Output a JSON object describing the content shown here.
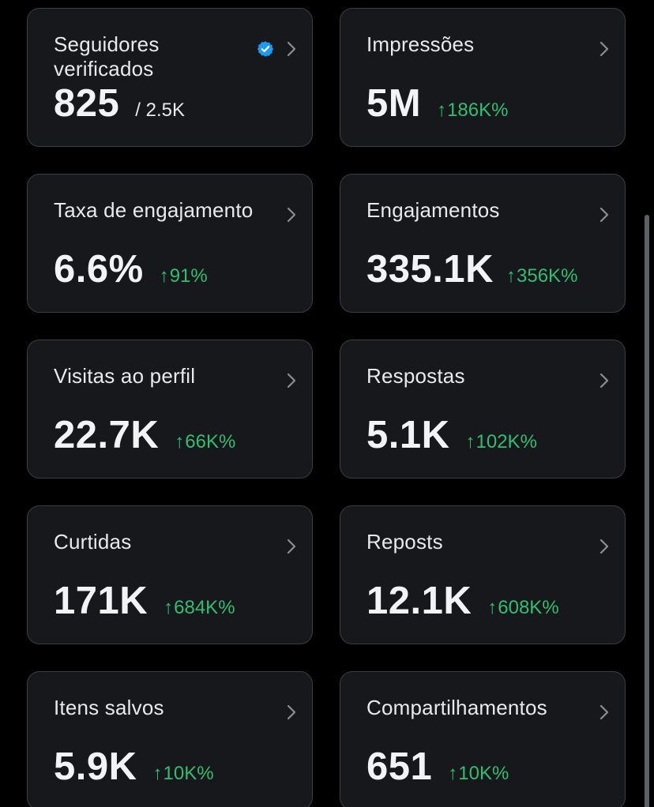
{
  "cards": [
    {
      "title": "Seguidores verificados",
      "value": "825",
      "total": "/ 2.5K",
      "verified": true
    },
    {
      "title": "Impressões",
      "value": "5M",
      "change": "186K%"
    },
    {
      "title": "Taxa de engajamento",
      "value": "6.6%",
      "change": "91%"
    },
    {
      "title": "Engajamentos",
      "value": "335.1K",
      "change": "356K%"
    },
    {
      "title": "Visitas ao perfil",
      "value": "22.7K",
      "change": "66K%"
    },
    {
      "title": "Respostas",
      "value": "5.1K",
      "change": "102K%"
    },
    {
      "title": "Curtidas",
      "value": "171K",
      "change": "684K%"
    },
    {
      "title": "Reposts",
      "value": "12.1K",
      "change": "608K%"
    },
    {
      "title": "Itens salvos",
      "value": "5.9K",
      "change": "10K%"
    },
    {
      "title": "Compartilhamentos",
      "value": "651",
      "change": "10K%"
    }
  ],
  "icons": {
    "chevron": "chevron-right-icon",
    "verified": "verified-badge-icon",
    "trend": "arrow-up-icon"
  },
  "colors": {
    "background": "#000000",
    "card": "#16181c",
    "border": "#3a3d42",
    "positive": "#2fbf71",
    "verified": "#1d9bf0"
  }
}
